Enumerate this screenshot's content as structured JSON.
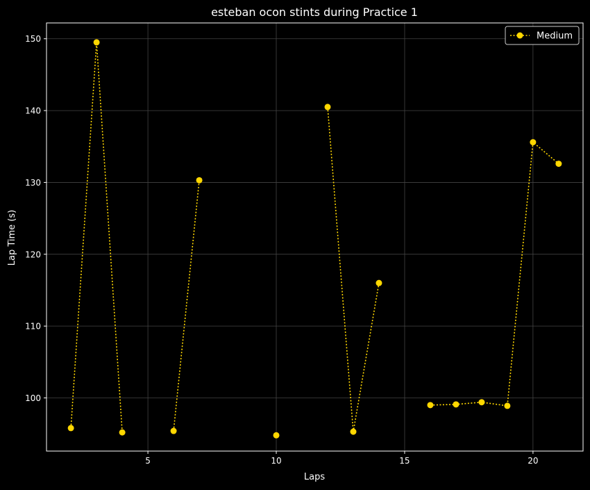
{
  "colors": {
    "background": "#000000",
    "text": "#ffffff",
    "grid": "#444444",
    "series_medium": "#FFD700"
  },
  "chart_data": {
    "type": "line",
    "title": "esteban ocon stints during Practice 1",
    "xlabel": "Laps",
    "ylabel": "Lap Time (s)",
    "xlim": [
      1.05,
      21.95
    ],
    "ylim": [
      92.6,
      152.2
    ],
    "xticks": [
      5,
      10,
      15,
      20
    ],
    "yticks": [
      100,
      110,
      120,
      130,
      140,
      150
    ],
    "grid": true,
    "legend_position": "top-right",
    "series": [
      {
        "name": "Medium",
        "color": "#FFD700",
        "line_style": "dotted",
        "marker": "circle",
        "segments": [
          [
            {
              "x": 2,
              "y": 95.8
            },
            {
              "x": 3,
              "y": 149.5
            },
            {
              "x": 4,
              "y": 95.2
            }
          ],
          [
            {
              "x": 6,
              "y": 95.4
            },
            {
              "x": 7,
              "y": 130.3
            }
          ],
          [
            {
              "x": 10,
              "y": 94.8
            }
          ],
          [
            {
              "x": 12,
              "y": 140.5
            },
            {
              "x": 13,
              "y": 95.3
            },
            {
              "x": 14,
              "y": 116.0
            }
          ],
          [
            {
              "x": 16,
              "y": 99.0
            },
            {
              "x": 17,
              "y": 99.1
            },
            {
              "x": 18,
              "y": 99.4
            },
            {
              "x": 19,
              "y": 98.9
            },
            {
              "x": 20,
              "y": 135.6
            },
            {
              "x": 21,
              "y": 132.6
            }
          ]
        ]
      }
    ]
  }
}
